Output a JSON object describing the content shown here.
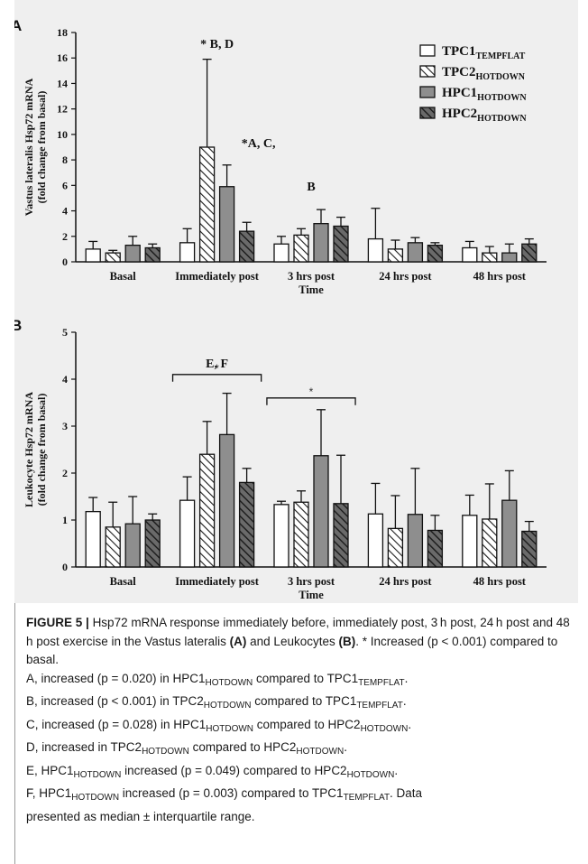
{
  "chart_data": [
    {
      "type": "bar",
      "panel_label": "A",
      "ylabel": "Vastus lateralis Hsp72 mRNA\n(fold change from basal)",
      "xlabel": "Time",
      "ylim": [
        0,
        18
      ],
      "yticks": [
        0,
        2,
        4,
        6,
        8,
        10,
        12,
        14,
        16,
        18
      ],
      "categories": [
        "Basal",
        "Immediately post",
        "3 hrs post",
        "24 hrs post",
        "48 hrs post"
      ],
      "series": [
        {
          "name": "TPC1",
          "name_sub": "TEMPFLAT",
          "fill": "white",
          "values": [
            1.0,
            1.5,
            1.4,
            1.8,
            1.1
          ],
          "error_upper": [
            1.6,
            2.6,
            2.0,
            4.2,
            1.6
          ]
        },
        {
          "name": "TPC2",
          "name_sub": "HOTDOWN",
          "fill": "hatch-diag",
          "values": [
            0.7,
            9.0,
            2.1,
            1.0,
            0.7
          ],
          "error_upper": [
            0.9,
            15.9,
            2.6,
            1.7,
            1.2
          ]
        },
        {
          "name": "HPC1",
          "name_sub": "HOTDOWN",
          "fill": "gray",
          "values": [
            1.3,
            5.9,
            3.0,
            1.5,
            0.7
          ],
          "error_upper": [
            2.0,
            7.6,
            4.1,
            1.9,
            1.4
          ]
        },
        {
          "name": "HPC2",
          "name_sub": "HOTDOWN",
          "fill": "hatch-dark",
          "values": [
            1.1,
            2.4,
            2.8,
            1.3,
            1.4
          ],
          "error_upper": [
            1.4,
            3.1,
            3.5,
            1.5,
            1.8
          ]
        }
      ],
      "annotations": [
        {
          "text": "* B, D",
          "category": "Immediately post",
          "y": 16.8
        },
        {
          "text": "*A, C,",
          "category": "Immediately post",
          "y": 9.0
        },
        {
          "text": "B",
          "category": "3 hrs post",
          "y": 5.6
        }
      ]
    },
    {
      "type": "bar",
      "panel_label": "B",
      "ylabel": "Leukocyte Hsp72 mRNA\n(fold change from basal)",
      "xlabel": "Time",
      "ylim": [
        0,
        5
      ],
      "yticks": [
        0,
        1,
        2,
        3,
        4,
        5
      ],
      "categories": [
        "Basal",
        "Immediately post",
        "3 hrs post",
        "24 hrs post",
        "48 hrs post"
      ],
      "series": [
        {
          "name": "TPC1",
          "name_sub": "TEMPFLAT",
          "fill": "white",
          "values": [
            1.18,
            1.42,
            1.33,
            1.13,
            1.1
          ],
          "error_upper": [
            1.48,
            1.92,
            1.4,
            1.78,
            1.53
          ]
        },
        {
          "name": "TPC2",
          "name_sub": "HOTDOWN",
          "fill": "hatch-diag",
          "values": [
            0.85,
            2.4,
            1.38,
            0.82,
            1.02
          ],
          "error_upper": [
            1.38,
            3.1,
            1.62,
            1.52,
            1.77
          ]
        },
        {
          "name": "HPC1",
          "name_sub": "HOTDOWN",
          "fill": "gray",
          "values": [
            0.92,
            2.82,
            2.37,
            1.12,
            1.42
          ],
          "error_upper": [
            1.5,
            3.7,
            3.35,
            2.1,
            2.05
          ]
        },
        {
          "name": "HPC2",
          "name_sub": "HOTDOWN",
          "fill": "hatch-dark",
          "values": [
            1.0,
            1.8,
            1.35,
            0.78,
            0.76
          ],
          "error_upper": [
            1.13,
            2.1,
            2.38,
            1.1,
            0.97
          ]
        }
      ],
      "annotations": [
        {
          "text": "E, F",
          "category": "Immediately post",
          "y": 4.25
        }
      ],
      "significance_brackets": [
        {
          "from": "Immediately post",
          "to": "Immediately post",
          "y": 4.1,
          "label": "*"
        },
        {
          "from": "3 hrs post",
          "to": "3 hrs post",
          "y": 3.6,
          "label": "*"
        }
      ]
    }
  ],
  "caption": {
    "figure_label": "FIGURE 5 |",
    "lines": [
      {
        "text": "Hsp72 mRNA response immediately before, immediately post, 3 h post, 24 h post and 48 h post exercise in the Vastus lateralis "
      },
      {
        "a_bold": "(A)"
      },
      {
        "leuk": "and Leukocytes "
      },
      {
        "b_bold": "(B)"
      },
      {
        "rest": ". * Increased (p < 0.001) compared to basal."
      }
    ],
    "intro_1": "Hsp72 mRNA response immediately before, immediately post, 3 h post, 24 h post and 48 h post exercise in the Vastus lateralis",
    "intro_a": "(A)",
    "intro_2": "and Leukocytes",
    "intro_b": "(B)",
    "intro_3": ". * Increased (p < 0.001) compared to basal.",
    "items": [
      {
        "pre": "A, increased (p = 0.020) in HPC1",
        "s1": "HOTDOWN",
        "mid": " compared to TPC1",
        "s2": "TEMPFLAT",
        "post": "."
      },
      {
        "pre": "B, increased (p < 0.001) in TPC2",
        "s1": "HOTDOWN",
        "mid": " compared to TPC1",
        "s2": "TEMPFLAT",
        "post": "."
      },
      {
        "pre": "C, increased (p = 0.028) in HPC1",
        "s1": "HOTDOWN",
        "mid": " compared to HPC2",
        "s2": "HOTDOWN",
        "post": "."
      },
      {
        "pre": "D, increased in TPC2",
        "s1": "HOTDOWN",
        "mid": " compared to HPC2",
        "s2": "HOTDOWN",
        "post": "."
      },
      {
        "pre": "E, HPC1",
        "s1": "HOTDOWN",
        "mid": " increased (p = 0.049) compared to HPC2",
        "s2": "HOTDOWN",
        "post": "."
      },
      {
        "pre": "F, HPC1",
        "s1": "HOTDOWN",
        "mid": " increased (p = 0.003) compared to TPC1",
        "s2": "TEMPFLAT",
        "post": ". Data"
      }
    ],
    "last_line": "presented as median ± interquartile range."
  }
}
